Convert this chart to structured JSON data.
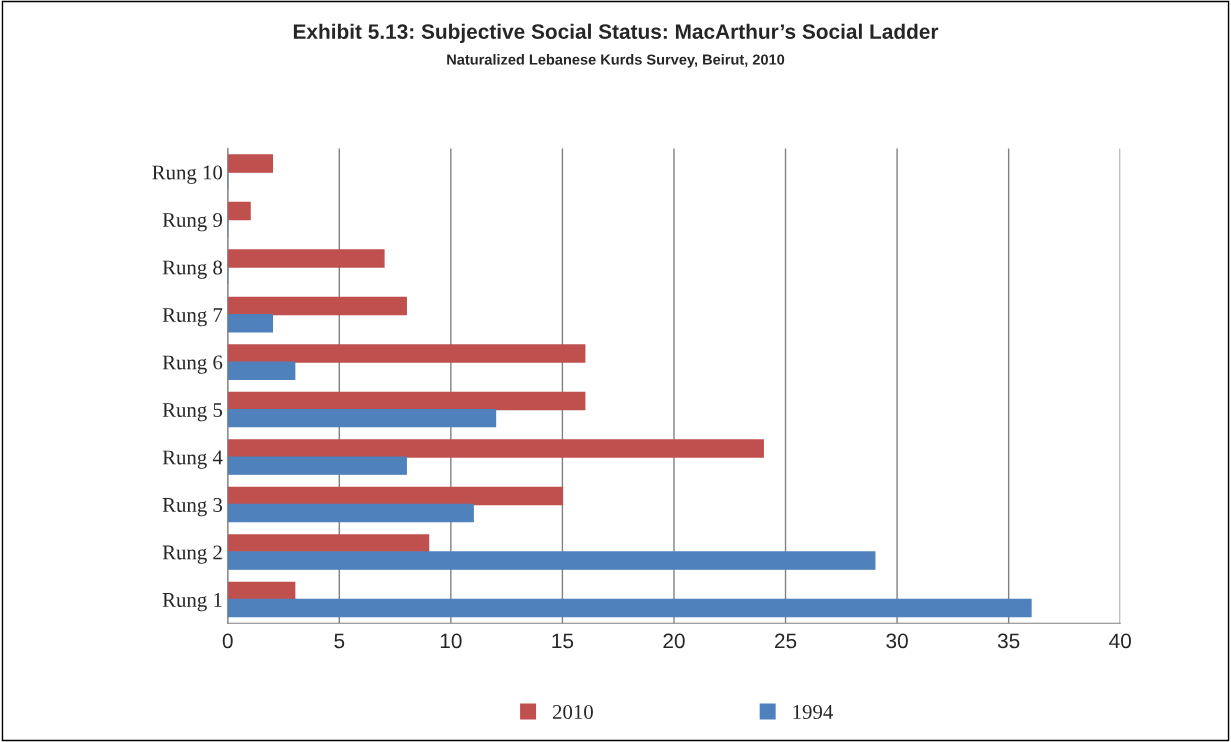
{
  "chart_data": {
    "type": "bar",
    "orientation": "horizontal",
    "title": "Exhibit 5.13: Subjective Social Status: MacArthur’s Social Ladder",
    "subtitle": "Naturalized Lebanese Kurds Survey, Beirut, 2010",
    "categories": [
      "Rung 10",
      "Rung 9",
      "Rung 8",
      "Rung 7",
      "Rung 6",
      "Rung 5",
      "Rung 4",
      "Rung 3",
      "Rung 2",
      "Rung 1"
    ],
    "series": [
      {
        "name": "2010",
        "color": "#c0504d",
        "values": [
          2,
          1,
          7,
          8,
          16,
          16,
          24,
          15,
          9,
          3
        ]
      },
      {
        "name": "1994",
        "color": "#4f81bd",
        "values": [
          0,
          0,
          0,
          2,
          3,
          12,
          8,
          11,
          29,
          36
        ]
      }
    ],
    "xlim": [
      0,
      40
    ],
    "xticks": [
      0,
      5,
      10,
      15,
      20,
      25,
      30,
      35,
      40
    ],
    "grid": "x",
    "legend": "bottom"
  }
}
